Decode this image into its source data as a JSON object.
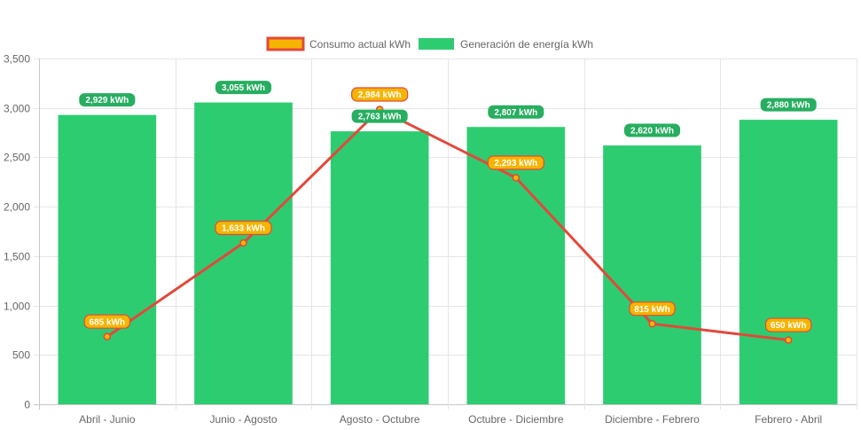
{
  "chart_data": {
    "type": "bar",
    "categories": [
      "Abril - Junio",
      "Junio - Agosto",
      "Agosto - Octubre",
      "Octubre - Diciembre",
      "Diciembre - Febrero",
      "Febrero - Abril"
    ],
    "series": [
      {
        "name": "Consumo actual kWh",
        "type": "line",
        "values": [
          685,
          1633,
          2984,
          2293,
          815,
          650
        ],
        "labels": [
          "685 kWh",
          "1,633 kWh",
          "2,984 kWh",
          "2,293 kWh",
          "815 kWh",
          "650 kWh"
        ],
        "color": "#e2493a",
        "label_color": "#f5b400",
        "label_border": "#e2493a"
      },
      {
        "name": "Generación de energía kWh",
        "type": "bar",
        "values": [
          2929,
          3055,
          2763,
          2807,
          2620,
          2880
        ],
        "labels": [
          "2,929 kWh",
          "3,055 kWh",
          "2,763 kWh",
          "2,807 kWh",
          "2,620 kWh",
          "2,880 kWh"
        ],
        "color": "#2ecc71",
        "label_color": "#27ae60"
      }
    ],
    "yticks": [
      "0",
      "500",
      "1,000",
      "1,500",
      "2,000",
      "2,500",
      "3,000",
      "3,500"
    ],
    "ylim": [
      0,
      3500
    ],
    "ystep": 500,
    "grid": true,
    "legend": "top-center",
    "title": "",
    "xlabel": "",
    "ylabel": ""
  }
}
